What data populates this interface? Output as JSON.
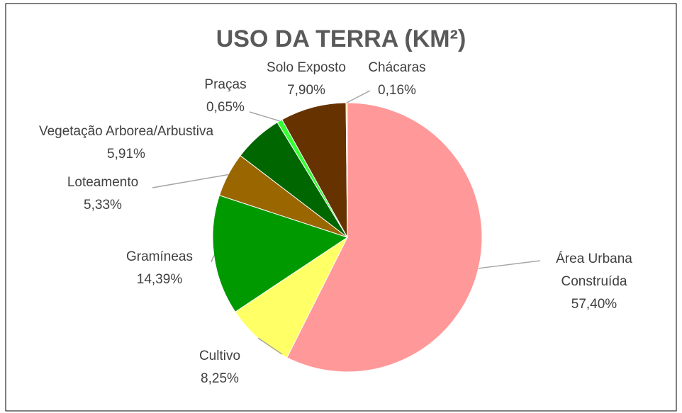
{
  "chart_data": {
    "type": "pie",
    "title": "USO DA TERRA (KM²)",
    "categories": [
      "Área Urbana Construída",
      "Cultivo",
      "Gramíneas",
      "Loteamento",
      "Vegetação Arborea/Arbustiva",
      "Praças",
      "Solo Exposto",
      "Chácaras"
    ],
    "values": [
      57.4,
      8.25,
      14.39,
      5.33,
      5.91,
      0.65,
      7.9,
      0.16
    ],
    "value_labels": [
      "57,40%",
      "8,25%",
      "14,39%",
      "5,33%",
      "5,91%",
      "0,65%",
      "7,90%",
      "0,16%"
    ],
    "colors": [
      "#ff9999",
      "#ffff66",
      "#009900",
      "#996600",
      "#006600",
      "#33ff33",
      "#663300",
      "#ffcc66"
    ]
  }
}
